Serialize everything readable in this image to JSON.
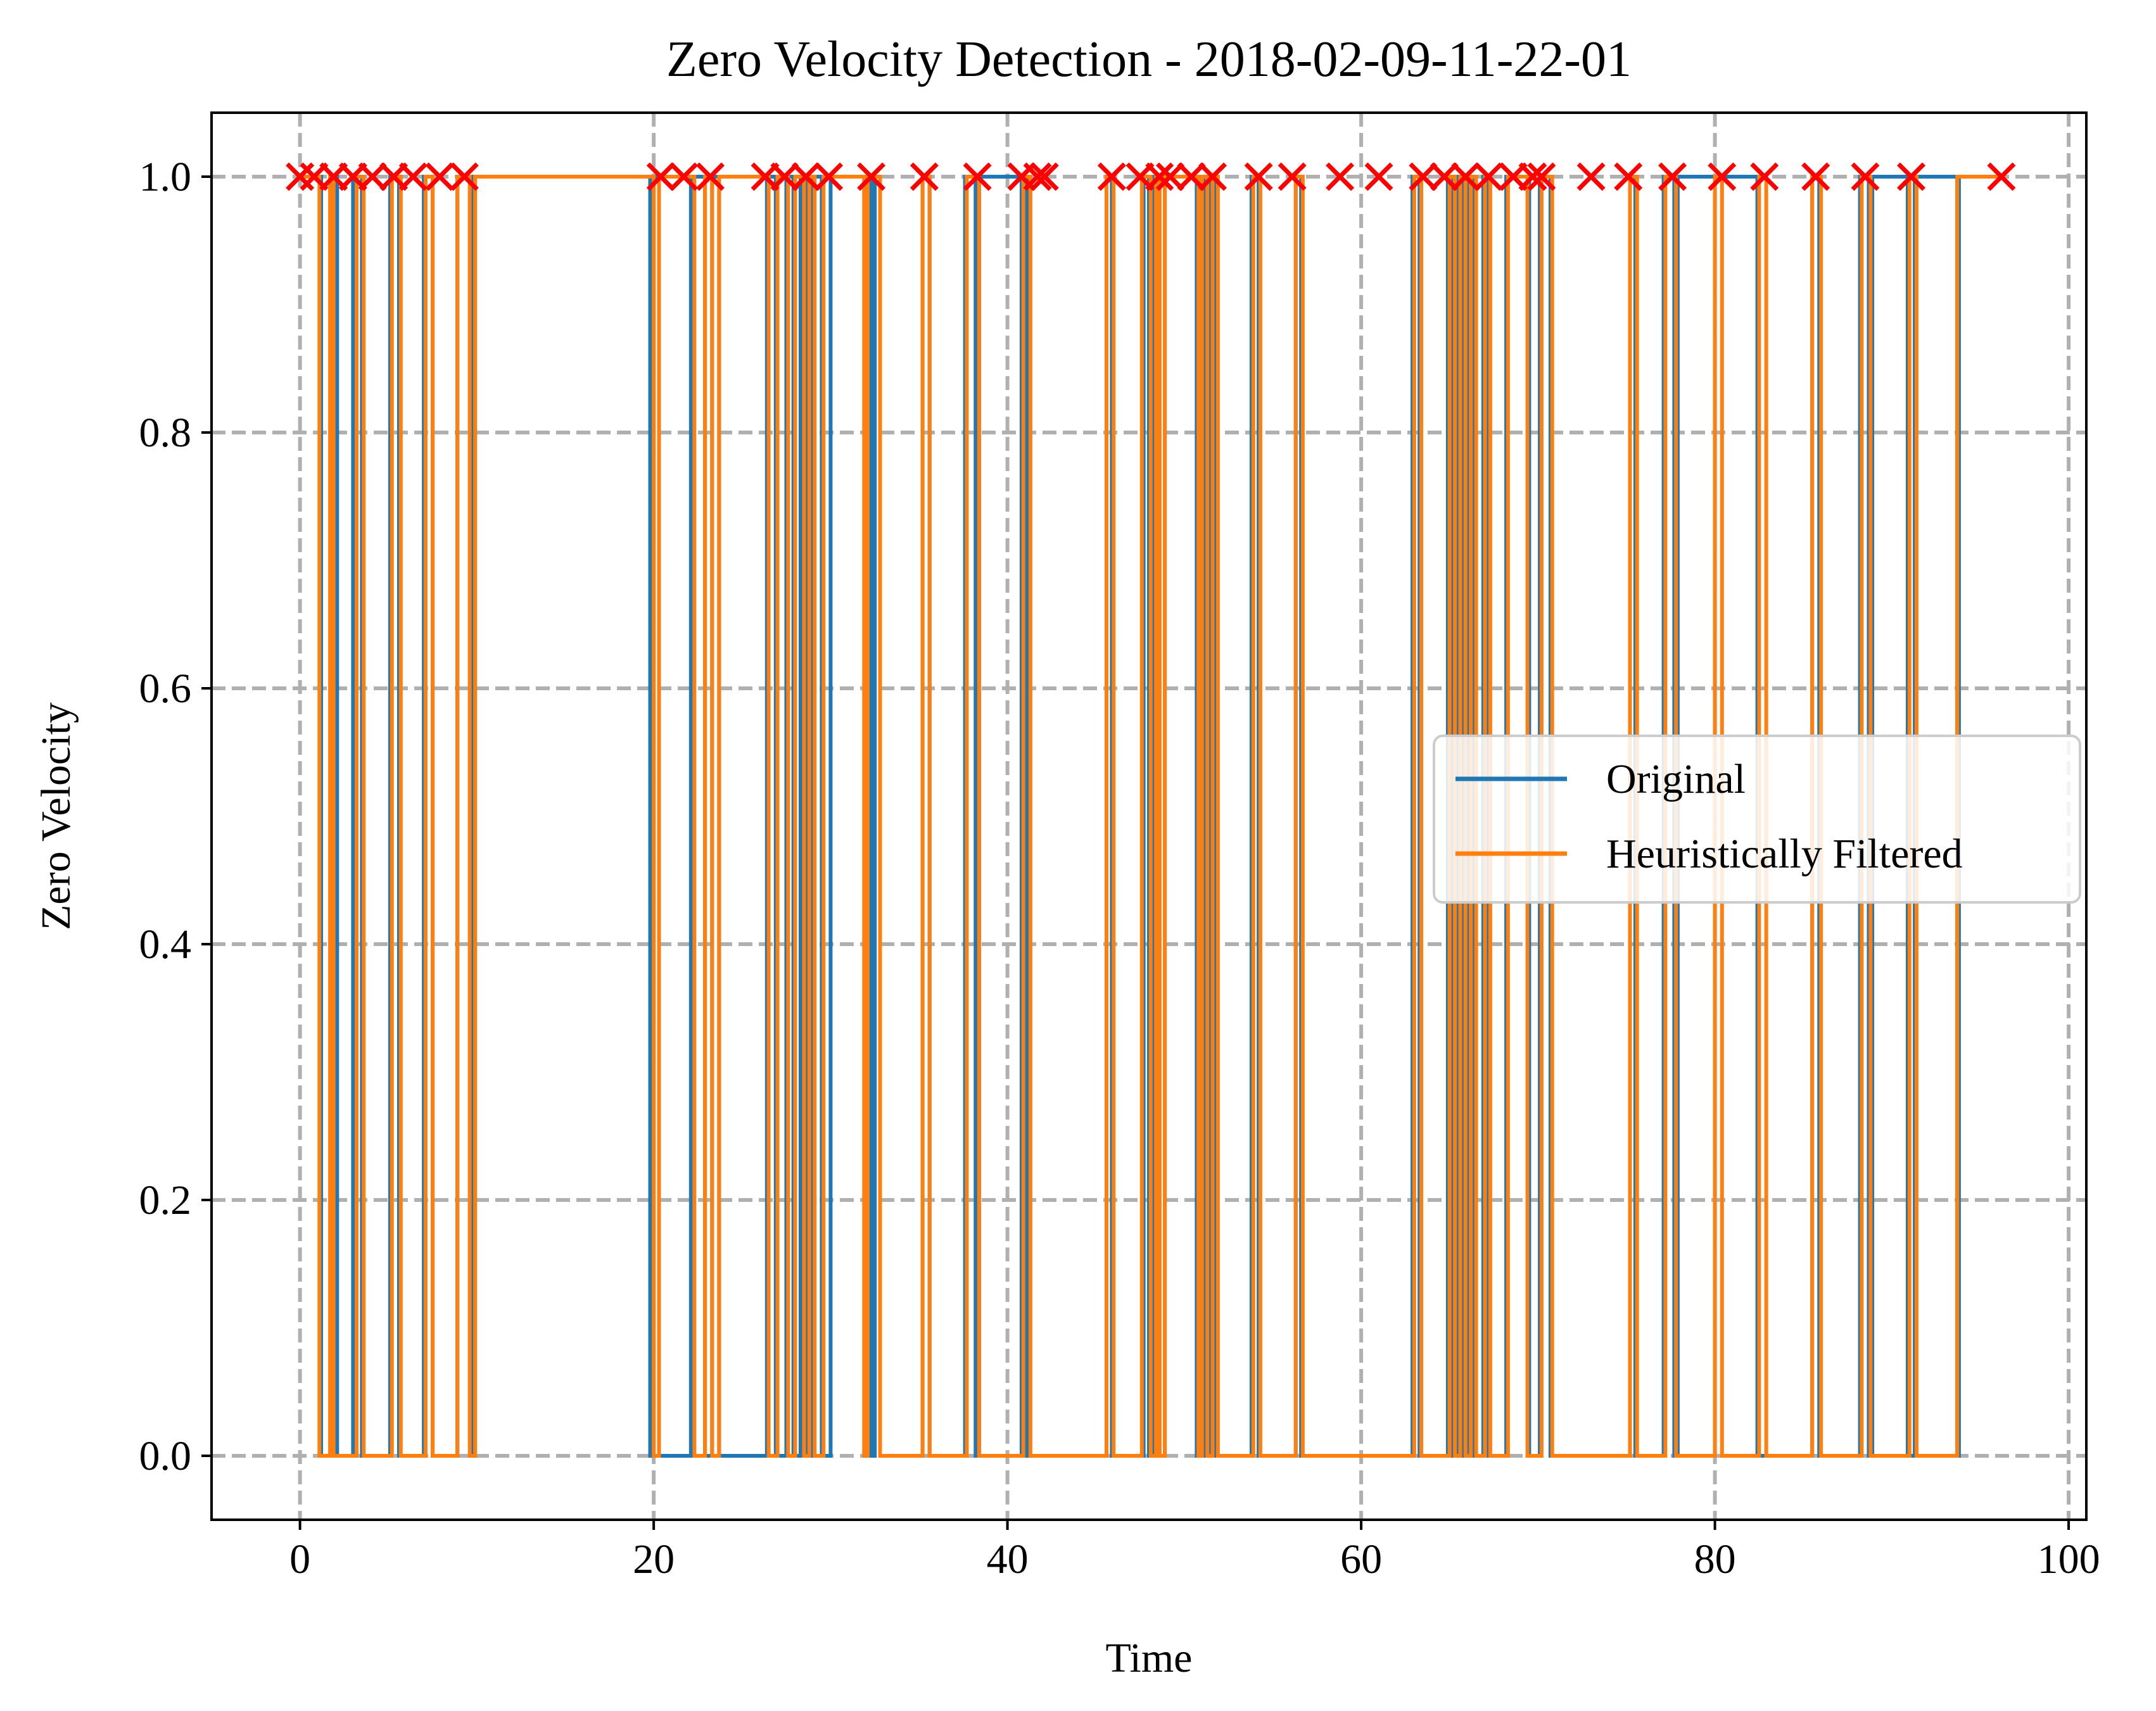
{
  "chart_data": {
    "type": "line",
    "title": "Zero Velocity Detection - 2018-02-09-11-22-01",
    "xlabel": "Time",
    "ylabel": "Zero Velocity",
    "xlim": [
      -5,
      101
    ],
    "ylim": [
      -0.05,
      1.05
    ],
    "x_ticks": [
      0,
      20,
      40,
      60,
      80,
      100
    ],
    "y_ticks": [
      0.0,
      0.2,
      0.4,
      0.6,
      0.8,
      1.0
    ],
    "x_tick_labels": [
      "0",
      "20",
      "40",
      "60",
      "80",
      "100"
    ],
    "y_tick_labels": [
      "0.0",
      "0.2",
      "0.4",
      "0.6",
      "0.8",
      "1.0"
    ],
    "grid": true,
    "legend_position": "center-right",
    "series": [
      {
        "name": "Original",
        "color": "#1f77b4",
        "step": true,
        "points": [
          [
            0,
            1
          ],
          [
            1.2,
            0
          ],
          [
            1.8,
            1
          ],
          [
            2.1,
            0
          ],
          [
            3.0,
            1
          ],
          [
            3.5,
            0
          ],
          [
            5.1,
            1
          ],
          [
            5.6,
            0
          ],
          [
            7.0,
            1
          ],
          [
            7.5,
            0
          ],
          [
            8.9,
            1
          ],
          [
            9.8,
            0
          ],
          [
            9.9,
            1
          ],
          [
            19.8,
            0
          ],
          [
            20.0,
            1
          ],
          [
            20.3,
            0
          ],
          [
            22.1,
            1
          ],
          [
            22.9,
            0
          ],
          [
            23.3,
            1
          ],
          [
            23.7,
            0
          ],
          [
            26.4,
            1
          ],
          [
            26.9,
            0
          ],
          [
            27.5,
            1
          ],
          [
            27.9,
            0
          ],
          [
            28.3,
            1
          ],
          [
            28.6,
            0
          ],
          [
            29.0,
            1
          ],
          [
            29.5,
            0
          ],
          [
            30.0,
            1
          ],
          [
            31.9,
            0
          ],
          [
            32.0,
            1
          ],
          [
            32.3,
            0
          ],
          [
            32.5,
            1
          ],
          [
            32.8,
            0
          ],
          [
            35.2,
            1
          ],
          [
            35.6,
            0
          ],
          [
            37.6,
            1
          ],
          [
            38.2,
            0
          ],
          [
            38.4,
            1
          ],
          [
            40.8,
            0
          ],
          [
            41.0,
            1
          ],
          [
            41.2,
            0
          ],
          [
            45.6,
            1
          ],
          [
            45.9,
            0
          ],
          [
            47.7,
            1
          ],
          [
            48.0,
            0
          ],
          [
            48.2,
            1
          ],
          [
            48.6,
            0
          ],
          [
            48.9,
            1
          ],
          [
            50.7,
            0
          ],
          [
            50.9,
            1
          ],
          [
            51.2,
            0
          ],
          [
            51.4,
            1
          ],
          [
            51.8,
            0
          ],
          [
            53.8,
            1
          ],
          [
            54.2,
            0
          ],
          [
            56.3,
            1
          ],
          [
            56.6,
            0
          ],
          [
            62.9,
            1
          ],
          [
            63.3,
            0
          ],
          [
            64.9,
            1
          ],
          [
            65.2,
            0
          ],
          [
            65.5,
            1
          ],
          [
            65.8,
            0
          ],
          [
            66.1,
            1
          ],
          [
            66.4,
            0
          ],
          [
            66.9,
            1
          ],
          [
            67.2,
            0
          ],
          [
            68.2,
            1
          ],
          [
            69.5,
            0
          ],
          [
            70.1,
            1
          ],
          [
            70.7,
            0
          ],
          [
            75.2,
            1
          ],
          [
            75.5,
            0
          ],
          [
            77.1,
            1
          ],
          [
            77.7,
            0
          ],
          [
            77.9,
            1
          ],
          [
            82.4,
            0
          ],
          [
            85.5,
            1
          ],
          [
            85.9,
            0
          ],
          [
            88.2,
            1
          ],
          [
            88.7,
            0
          ],
          [
            88.9,
            1
          ],
          [
            90.9,
            0
          ],
          [
            91.3,
            1
          ],
          [
            93.7,
            0
          ],
          [
            93.8,
            1
          ],
          [
            96.2,
            1
          ]
        ]
      },
      {
        "name": "Heuristically Filtered",
        "color": "#ff7f0e",
        "step": true,
        "points": [
          [
            0,
            1
          ],
          [
            1.1,
            0
          ],
          [
            1.7,
            1
          ],
          [
            1.9,
            0
          ],
          [
            3.2,
            1
          ],
          [
            3.6,
            0
          ],
          [
            5.2,
            1
          ],
          [
            5.7,
            0
          ],
          [
            7.1,
            1
          ],
          [
            7.5,
            0
          ],
          [
            8.9,
            1
          ],
          [
            9.6,
            0
          ],
          [
            9.9,
            1
          ],
          [
            20.0,
            0
          ],
          [
            20.3,
            1
          ],
          [
            22.3,
            0
          ],
          [
            22.9,
            1
          ],
          [
            23.3,
            0
          ],
          [
            23.7,
            1
          ],
          [
            26.5,
            0
          ],
          [
            27.0,
            1
          ],
          [
            27.6,
            0
          ],
          [
            28.0,
            1
          ],
          [
            28.5,
            0
          ],
          [
            28.8,
            1
          ],
          [
            29.1,
            0
          ],
          [
            29.6,
            1
          ],
          [
            31.9,
            0
          ],
          [
            32.1,
            1
          ],
          [
            32.8,
            0
          ],
          [
            35.2,
            1
          ],
          [
            35.6,
            0
          ],
          [
            37.7,
            1
          ],
          [
            38.4,
            0
          ],
          [
            40.9,
            1
          ],
          [
            41.3,
            0
          ],
          [
            45.6,
            1
          ],
          [
            46.0,
            0
          ],
          [
            47.6,
            1
          ],
          [
            48.1,
            0
          ],
          [
            48.4,
            1
          ],
          [
            48.6,
            0
          ],
          [
            48.9,
            1
          ],
          [
            50.8,
            0
          ],
          [
            51.0,
            1
          ],
          [
            51.3,
            0
          ],
          [
            51.6,
            1
          ],
          [
            51.9,
            0
          ],
          [
            53.9,
            1
          ],
          [
            54.3,
            0
          ],
          [
            56.3,
            1
          ],
          [
            56.7,
            0
          ],
          [
            63.0,
            1
          ],
          [
            63.4,
            0
          ],
          [
            65.0,
            1
          ],
          [
            65.3,
            0
          ],
          [
            65.6,
            1
          ],
          [
            65.9,
            0
          ],
          [
            66.2,
            1
          ],
          [
            66.5,
            0
          ],
          [
            67.0,
            1
          ],
          [
            67.3,
            0
          ],
          [
            68.3,
            1
          ],
          [
            69.4,
            0
          ],
          [
            70.2,
            1
          ],
          [
            70.8,
            0
          ],
          [
            75.2,
            1
          ],
          [
            75.6,
            0
          ],
          [
            77.2,
            1
          ],
          [
            77.8,
            0
          ],
          [
            80.0,
            1
          ],
          [
            80.4,
            0
          ],
          [
            82.5,
            1
          ],
          [
            82.9,
            0
          ],
          [
            85.5,
            1
          ],
          [
            86.0,
            0
          ],
          [
            88.3,
            1
          ],
          [
            88.8,
            0
          ],
          [
            91.0,
            1
          ],
          [
            91.4,
            0
          ],
          [
            93.7,
            1
          ],
          [
            96.2,
            1
          ]
        ]
      },
      {
        "name": "",
        "color": "#ff0000",
        "marker": "x",
        "x": [
          0,
          0.8,
          1.9,
          3.0,
          4.1,
          5.3,
          6.4,
          7.9,
          9.3,
          20.4,
          21.7,
          23.2,
          26.3,
          27.4,
          28.6,
          29.9,
          32.3,
          35.3,
          38.3,
          40.8,
          41.7,
          42.1,
          45.9,
          47.5,
          48.6,
          49.2,
          50.4,
          51.6,
          54.2,
          56.1,
          58.8,
          61.0,
          63.5,
          64.7,
          65.9,
          67.2,
          68.6,
          69.7,
          70.2,
          73.0,
          75.1,
          77.6,
          80.4,
          82.8,
          85.7,
          88.5,
          91.1,
          96.2
        ],
        "y": [
          1,
          1,
          1,
          1,
          1,
          1,
          1,
          1,
          1,
          1,
          1,
          1,
          1,
          1,
          1,
          1,
          1,
          1,
          1,
          1,
          1,
          1,
          1,
          1,
          1,
          1,
          1,
          1,
          1,
          1,
          1,
          1,
          1,
          1,
          1,
          1,
          1,
          1,
          1,
          1,
          1,
          1,
          1,
          1,
          1,
          1,
          1,
          1
        ]
      }
    ]
  }
}
